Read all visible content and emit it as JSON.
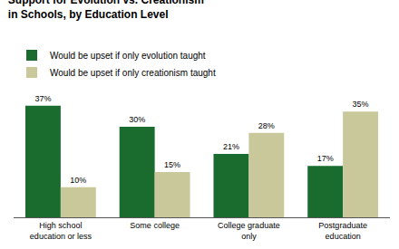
{
  "chart_data": {
    "type": "bar",
    "title": "Support for Evolution vs. Creationism in Schools, by Education Level",
    "categories": [
      "High school\neducation or less",
      "Some college",
      "College graduate\nonly",
      "Postgraduate\neducation"
    ],
    "series": [
      {
        "name": "Would be upset if only evolution taught",
        "color": "#1a6b2e",
        "values": [
          37,
          30,
          21,
          17
        ],
        "value_labels": [
          "37%",
          "30%",
          "21%",
          "17%"
        ]
      },
      {
        "name": "Would be upset if only creationism taught",
        "color": "#c8c89a",
        "values": [
          10,
          15,
          28,
          35
        ],
        "value_labels": [
          "10%",
          "15%",
          "28%",
          "35%"
        ]
      }
    ],
    "ylim": [
      0,
      42
    ],
    "grid": false,
    "legend": "upper left",
    "data_labels": true,
    "tick_labels": "x"
  }
}
